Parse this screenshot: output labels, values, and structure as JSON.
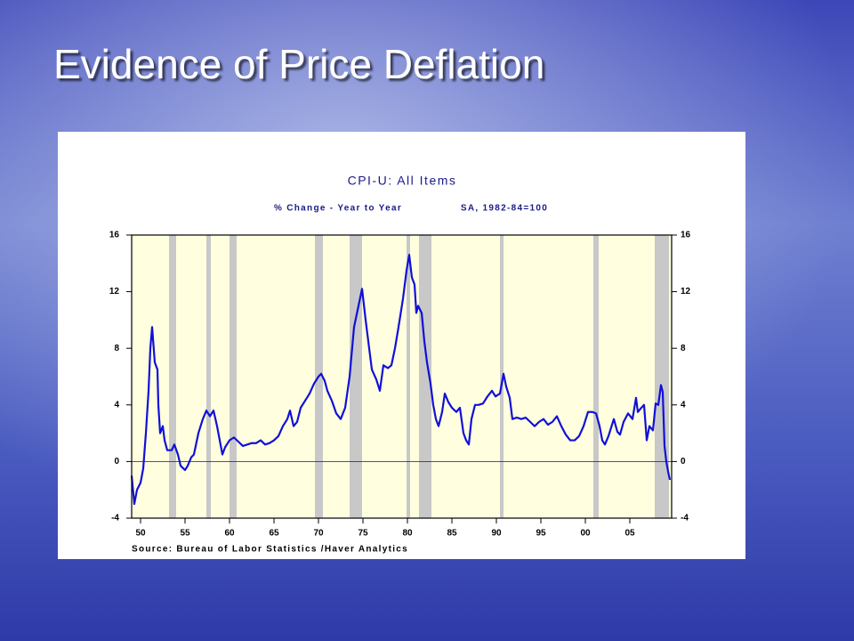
{
  "slide_title": "Evidence of Price Deflation",
  "chart_data": {
    "type": "line",
    "title": "CPI-U: All Items",
    "subtitle": "% Change - Year to Year",
    "subtitle_note": "SA, 1982-84=100",
    "source": "Source:  Bureau of Labor Statistics /Haver Analytics",
    "color": "#1010d8",
    "xlim": [
      1949,
      2009.7
    ],
    "ylim": [
      -4,
      16
    ],
    "yticks": [
      -4,
      0,
      4,
      8,
      12,
      16
    ],
    "xticks": [
      {
        "value": 1950,
        "label": "50"
      },
      {
        "value": 1955,
        "label": "55"
      },
      {
        "value": 1960,
        "label": "60"
      },
      {
        "value": 1965,
        "label": "65"
      },
      {
        "value": 1970,
        "label": "70"
      },
      {
        "value": 1975,
        "label": "75"
      },
      {
        "value": 1980,
        "label": "80"
      },
      {
        "value": 1985,
        "label": "85"
      },
      {
        "value": 1990,
        "label": "90"
      },
      {
        "value": 1995,
        "label": "95"
      },
      {
        "value": 2000,
        "label": "00"
      },
      {
        "value": 2005,
        "label": "05"
      }
    ],
    "recessions": [
      [
        1953.2,
        1954.0
      ],
      [
        1957.4,
        1957.9
      ],
      [
        1960.0,
        1960.8
      ],
      [
        1969.6,
        1970.5
      ],
      [
        1973.5,
        1974.9
      ],
      [
        1979.9,
        1980.3
      ],
      [
        1981.3,
        1982.7
      ],
      [
        1990.4,
        1990.8
      ],
      [
        2000.9,
        2001.5
      ],
      [
        2007.8,
        2009.4
      ]
    ],
    "x": [
      1949.0,
      1949.3,
      1949.6,
      1950.0,
      1950.3,
      1950.6,
      1950.9,
      1951.1,
      1951.3,
      1951.6,
      1951.9,
      1952.0,
      1952.2,
      1952.5,
      1952.7,
      1953.0,
      1953.5,
      1953.8,
      1954.2,
      1954.5,
      1955.0,
      1955.3,
      1955.7,
      1956.0,
      1956.5,
      1957.0,
      1957.4,
      1957.8,
      1958.2,
      1958.6,
      1958.9,
      1959.2,
      1959.5,
      1960.0,
      1960.5,
      1961.0,
      1961.5,
      1962.0,
      1962.5,
      1963.0,
      1963.5,
      1964.0,
      1964.5,
      1965.0,
      1965.5,
      1966.0,
      1966.5,
      1966.8,
      1967.2,
      1967.6,
      1968.0,
      1968.5,
      1969.0,
      1969.5,
      1970.0,
      1970.3,
      1970.7,
      1971.0,
      1971.5,
      1972.0,
      1972.5,
      1973.0,
      1973.5,
      1974.0,
      1974.5,
      1974.9,
      1975.3,
      1975.7,
      1976.0,
      1976.5,
      1976.9,
      1977.3,
      1977.8,
      1978.2,
      1978.6,
      1979.0,
      1979.5,
      1979.9,
      1980.2,
      1980.5,
      1980.8,
      1981.0,
      1981.2,
      1981.6,
      1981.9,
      1982.2,
      1982.6,
      1982.9,
      1983.2,
      1983.5,
      1983.9,
      1984.2,
      1984.6,
      1985.0,
      1985.5,
      1985.9,
      1986.3,
      1986.6,
      1986.9,
      1987.2,
      1987.6,
      1988.0,
      1988.5,
      1989.0,
      1989.5,
      1989.9,
      1990.4,
      1990.8,
      1991.1,
      1991.5,
      1991.8,
      1992.3,
      1992.8,
      1993.3,
      1993.8,
      1994.3,
      1994.8,
      1995.3,
      1995.8,
      1996.3,
      1996.8,
      1997.3,
      1997.8,
      1998.3,
      1998.8,
      1999.3,
      1999.8,
      2000.3,
      2000.8,
      2001.2,
      2001.6,
      2001.9,
      2002.2,
      2002.6,
      2002.9,
      2003.2,
      2003.6,
      2003.9,
      2004.3,
      2004.8,
      2005.3,
      2005.7,
      2005.9,
      2006.3,
      2006.6,
      2006.9,
      2007.2,
      2007.6,
      2007.9,
      2008.2,
      2008.5,
      2008.7,
      2008.9,
      2009.1,
      2009.3,
      2009.5
    ],
    "values": [
      -1.0,
      -3.0,
      -2.0,
      -1.5,
      -0.5,
      2.0,
      5.0,
      8.0,
      9.5,
      7.0,
      6.5,
      4.0,
      2.0,
      2.5,
      1.5,
      0.8,
      0.8,
      1.2,
      0.5,
      -0.3,
      -0.6,
      -0.3,
      0.3,
      0.5,
      2.0,
      3.0,
      3.6,
      3.2,
      3.6,
      2.5,
      1.5,
      0.5,
      1.0,
      1.5,
      1.7,
      1.4,
      1.1,
      1.2,
      1.3,
      1.3,
      1.5,
      1.2,
      1.3,
      1.5,
      1.8,
      2.5,
      3.0,
      3.6,
      2.5,
      2.8,
      3.8,
      4.3,
      4.8,
      5.5,
      6.0,
      6.2,
      5.7,
      5.0,
      4.3,
      3.4,
      3.0,
      3.8,
      6.0,
      9.5,
      11.0,
      12.2,
      10.0,
      8.0,
      6.5,
      5.8,
      5.0,
      6.8,
      6.6,
      6.8,
      8.0,
      9.5,
      11.5,
      13.5,
      14.6,
      13.0,
      12.5,
      10.5,
      11.0,
      10.5,
      8.5,
      7.0,
      5.5,
      4.0,
      3.0,
      2.5,
      3.5,
      4.8,
      4.2,
      3.8,
      3.5,
      3.8,
      2.0,
      1.5,
      1.2,
      3.0,
      4.0,
      4.0,
      4.1,
      4.6,
      5.0,
      4.6,
      4.8,
      6.2,
      5.3,
      4.5,
      3.0,
      3.1,
      3.0,
      3.1,
      2.8,
      2.5,
      2.8,
      3.0,
      2.6,
      2.8,
      3.2,
      2.5,
      1.9,
      1.5,
      1.5,
      1.8,
      2.5,
      3.5,
      3.5,
      3.4,
      2.5,
      1.5,
      1.2,
      1.8,
      2.4,
      3.0,
      2.1,
      1.9,
      2.8,
      3.4,
      3.0,
      4.5,
      3.5,
      3.8,
      4.0,
      1.5,
      2.5,
      2.2,
      4.1,
      4.0,
      5.4,
      4.9,
      1.1,
      0.0,
      -0.7,
      -1.3
    ]
  }
}
